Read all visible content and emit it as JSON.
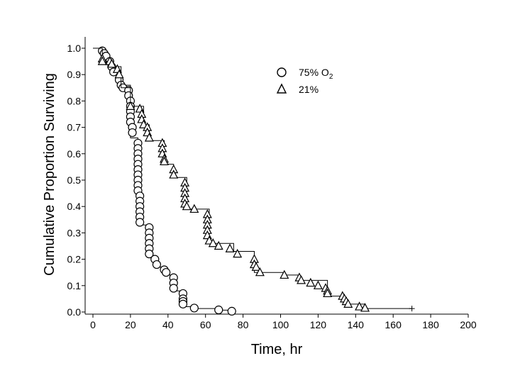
{
  "chart_data": {
    "type": "line",
    "subtype": "kaplan-meier survival curve",
    "xlabel": "Time, hr",
    "ylabel": "Cumulative Proportion Surviving",
    "xlim": [
      0,
      200
    ],
    "ylim": [
      0,
      1.0
    ],
    "xticks": [
      "0",
      "20",
      "40",
      "60",
      "80",
      "100",
      "120",
      "140",
      "160",
      "180",
      "200"
    ],
    "yticks": [
      "0.0",
      "0.1",
      "0.2",
      "0.3",
      "0.4",
      "0.5",
      "0.6",
      "0.7",
      "0.8",
      "0.9",
      "1.0"
    ],
    "grid": false,
    "legend_position": "top-right",
    "series": [
      {
        "name": "75% O",
        "name_subscript": "2",
        "marker": "circle",
        "censored_marker": "+",
        "steps": [
          [
            0,
            1.0
          ],
          [
            5,
            0.98
          ],
          [
            8,
            0.96
          ],
          [
            10,
            0.92
          ],
          [
            14,
            0.88
          ],
          [
            16,
            0.86
          ],
          [
            20,
            0.66
          ],
          [
            24,
            0.45
          ],
          [
            25,
            0.33
          ],
          [
            30,
            0.21
          ],
          [
            33,
            0.17
          ],
          [
            38,
            0.14
          ],
          [
            43,
            0.08
          ],
          [
            48,
            0.02
          ],
          [
            53,
            0.013
          ],
          [
            67,
            0.007
          ],
          [
            74,
            0.0
          ]
        ],
        "censored": [
          [
            5,
            0.99
          ],
          [
            6,
            0.98
          ],
          [
            7,
            0.97
          ],
          [
            9,
            0.95
          ],
          [
            10,
            0.93
          ],
          [
            11,
            0.91
          ],
          [
            14,
            0.88
          ],
          [
            15,
            0.86
          ],
          [
            16,
            0.85
          ],
          [
            19,
            0.84
          ],
          [
            19,
            0.82
          ],
          [
            20,
            0.8
          ],
          [
            20,
            0.78
          ],
          [
            20,
            0.76
          ],
          [
            20,
            0.74
          ],
          [
            20,
            0.72
          ],
          [
            21,
            0.7
          ],
          [
            21,
            0.68
          ],
          [
            24,
            0.64
          ],
          [
            24,
            0.62
          ],
          [
            24,
            0.6
          ],
          [
            24,
            0.58
          ],
          [
            24,
            0.56
          ],
          [
            24,
            0.54
          ],
          [
            24,
            0.52
          ],
          [
            24,
            0.5
          ],
          [
            24,
            0.48
          ],
          [
            24,
            0.46
          ],
          [
            25,
            0.44
          ],
          [
            25,
            0.42
          ],
          [
            25,
            0.4
          ],
          [
            25,
            0.38
          ],
          [
            25,
            0.36
          ],
          [
            25,
            0.34
          ],
          [
            30,
            0.32
          ],
          [
            30,
            0.3
          ],
          [
            30,
            0.28
          ],
          [
            30,
            0.26
          ],
          [
            30,
            0.24
          ],
          [
            30,
            0.22
          ],
          [
            33,
            0.2
          ],
          [
            34,
            0.18
          ],
          [
            38,
            0.16
          ],
          [
            39,
            0.15
          ],
          [
            43,
            0.13
          ],
          [
            43,
            0.11
          ],
          [
            43,
            0.09
          ],
          [
            48,
            0.07
          ],
          [
            48,
            0.05
          ],
          [
            48,
            0.04
          ],
          [
            48,
            0.03
          ],
          [
            54,
            0.015
          ],
          [
            67,
            0.008
          ],
          [
            74,
            0.003
          ]
        ]
      },
      {
        "name": "21%",
        "marker": "triangle",
        "censored_marker": "+",
        "steps": [
          [
            0,
            1.0
          ],
          [
            5,
            0.95
          ],
          [
            10,
            0.93
          ],
          [
            15,
            0.85
          ],
          [
            20,
            0.78
          ],
          [
            27,
            0.71
          ],
          [
            30,
            0.65
          ],
          [
            38,
            0.56
          ],
          [
            43,
            0.51
          ],
          [
            50,
            0.39
          ],
          [
            62,
            0.26
          ],
          [
            75,
            0.23
          ],
          [
            86,
            0.15
          ],
          [
            102,
            0.14
          ],
          [
            110,
            0.12
          ],
          [
            125,
            0.06
          ],
          [
            134,
            0.03
          ],
          [
            145,
            0.013
          ],
          [
            170,
            0.013
          ]
        ],
        "censored": [
          [
            5,
            0.96
          ],
          [
            5,
            0.95
          ],
          [
            9,
            0.95
          ],
          [
            10,
            0.94
          ],
          [
            13,
            0.92
          ],
          [
            14,
            0.9
          ],
          [
            20,
            0.78
          ],
          [
            25,
            0.77
          ],
          [
            26,
            0.75
          ],
          [
            26,
            0.73
          ],
          [
            27,
            0.71
          ],
          [
            29,
            0.7
          ],
          [
            29,
            0.68
          ],
          [
            30,
            0.66
          ],
          [
            37,
            0.64
          ],
          [
            37,
            0.62
          ],
          [
            37,
            0.6
          ],
          [
            38,
            0.58
          ],
          [
            38,
            0.57
          ],
          [
            43,
            0.54
          ],
          [
            43,
            0.52
          ],
          [
            49,
            0.49
          ],
          [
            49,
            0.47
          ],
          [
            49,
            0.45
          ],
          [
            49,
            0.43
          ],
          [
            49,
            0.41
          ],
          [
            50,
            0.4
          ],
          [
            54,
            0.39
          ],
          [
            61,
            0.37
          ],
          [
            61,
            0.35
          ],
          [
            61,
            0.33
          ],
          [
            61,
            0.31
          ],
          [
            61,
            0.29
          ],
          [
            62,
            0.27
          ],
          [
            64,
            0.26
          ],
          [
            67,
            0.25
          ],
          [
            73,
            0.24
          ],
          [
            77,
            0.22
          ],
          [
            86,
            0.2
          ],
          [
            86,
            0.18
          ],
          [
            87,
            0.17
          ],
          [
            89,
            0.15
          ],
          [
            102,
            0.14
          ],
          [
            110,
            0.13
          ],
          [
            111,
            0.12
          ],
          [
            116,
            0.11
          ],
          [
            120,
            0.1
          ],
          [
            124,
            0.09
          ],
          [
            125,
            0.08
          ],
          [
            125,
            0.07
          ],
          [
            133,
            0.06
          ],
          [
            134,
            0.05
          ],
          [
            135,
            0.04
          ],
          [
            136,
            0.03
          ],
          [
            142,
            0.02
          ],
          [
            145,
            0.015
          ]
        ]
      }
    ],
    "final_censor_point": [
      170,
      0.013
    ]
  }
}
